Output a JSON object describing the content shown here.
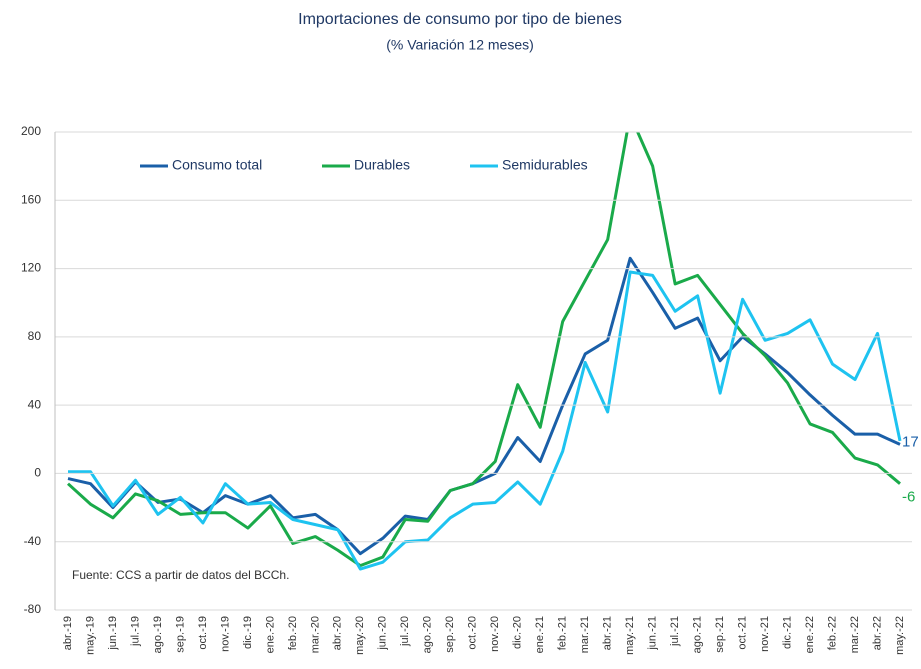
{
  "chart_data": {
    "type": "line",
    "title": "Importaciones de consumo por tipo de bienes",
    "subtitle": "(% Variación 12 meses)",
    "annotation": "Fuente: CCS a partir de datos del BCCh.",
    "categories": [
      "abr.-19",
      "may.-19",
      "jun.-19",
      "jul.-19",
      "ago.-19",
      "sep.-19",
      "oct.-19",
      "nov.-19",
      "dic.-19",
      "ene.-20",
      "feb.-20",
      "mar.-20",
      "abr.-20",
      "may.-20",
      "jun.-20",
      "jul.-20",
      "ago.-20",
      "sep.-20",
      "oct.-20",
      "nov.-20",
      "dic.-20",
      "ene.-21",
      "feb.-21",
      "mar.-21",
      "abr.-21",
      "may.-21",
      "jun.-21",
      "jul.-21",
      "ago.-21",
      "sep.-21",
      "oct.-21",
      "nov.-21",
      "dic.-21",
      "ene.-22",
      "feb.-22",
      "mar.-22",
      "abr.-22",
      "may.-22"
    ],
    "series": [
      {
        "name": "Consumo total",
        "color": "#1a5fa8",
        "values": [
          -3,
          -6,
          -20,
          -5,
          -17,
          -15,
          -23,
          -13,
          -18,
          -13,
          -26,
          -24,
          -33,
          -47,
          -38,
          -25,
          -27,
          -10,
          -6,
          0,
          21,
          7,
          40,
          70,
          78,
          126,
          106,
          85,
          91,
          66,
          80,
          70,
          59,
          46,
          34,
          23,
          23,
          17
        ]
      },
      {
        "name": "Durables",
        "color": "#1aaa4a",
        "values": [
          -6,
          -18,
          -26,
          -12,
          -16,
          -24,
          -23,
          -23,
          -32,
          -19,
          -41,
          -37,
          -45,
          -54,
          -49,
          -27,
          -28,
          -10,
          -6,
          7,
          52,
          27,
          89,
          113,
          137,
          210,
          180,
          111,
          116,
          99,
          82,
          69,
          53,
          29,
          24,
          9,
          5,
          -6
        ]
      },
      {
        "name": "Semidurables",
        "color": "#1ec3f0",
        "values": [
          1,
          1,
          -19,
          -4,
          -24,
          -14,
          -29,
          -6,
          -18,
          -17,
          -27,
          -30,
          -33,
          -56,
          -52,
          -40,
          -39,
          -26,
          -18,
          -17,
          -5,
          -18,
          13,
          65,
          36,
          118,
          116,
          95,
          104,
          47,
          102,
          78,
          82,
          90,
          64,
          55,
          82,
          19
        ]
      }
    ],
    "ylim": [
      -80,
      200
    ],
    "yticks": [
      -80,
      -40,
      0,
      40,
      80,
      120,
      160,
      200
    ],
    "grid": true
  }
}
